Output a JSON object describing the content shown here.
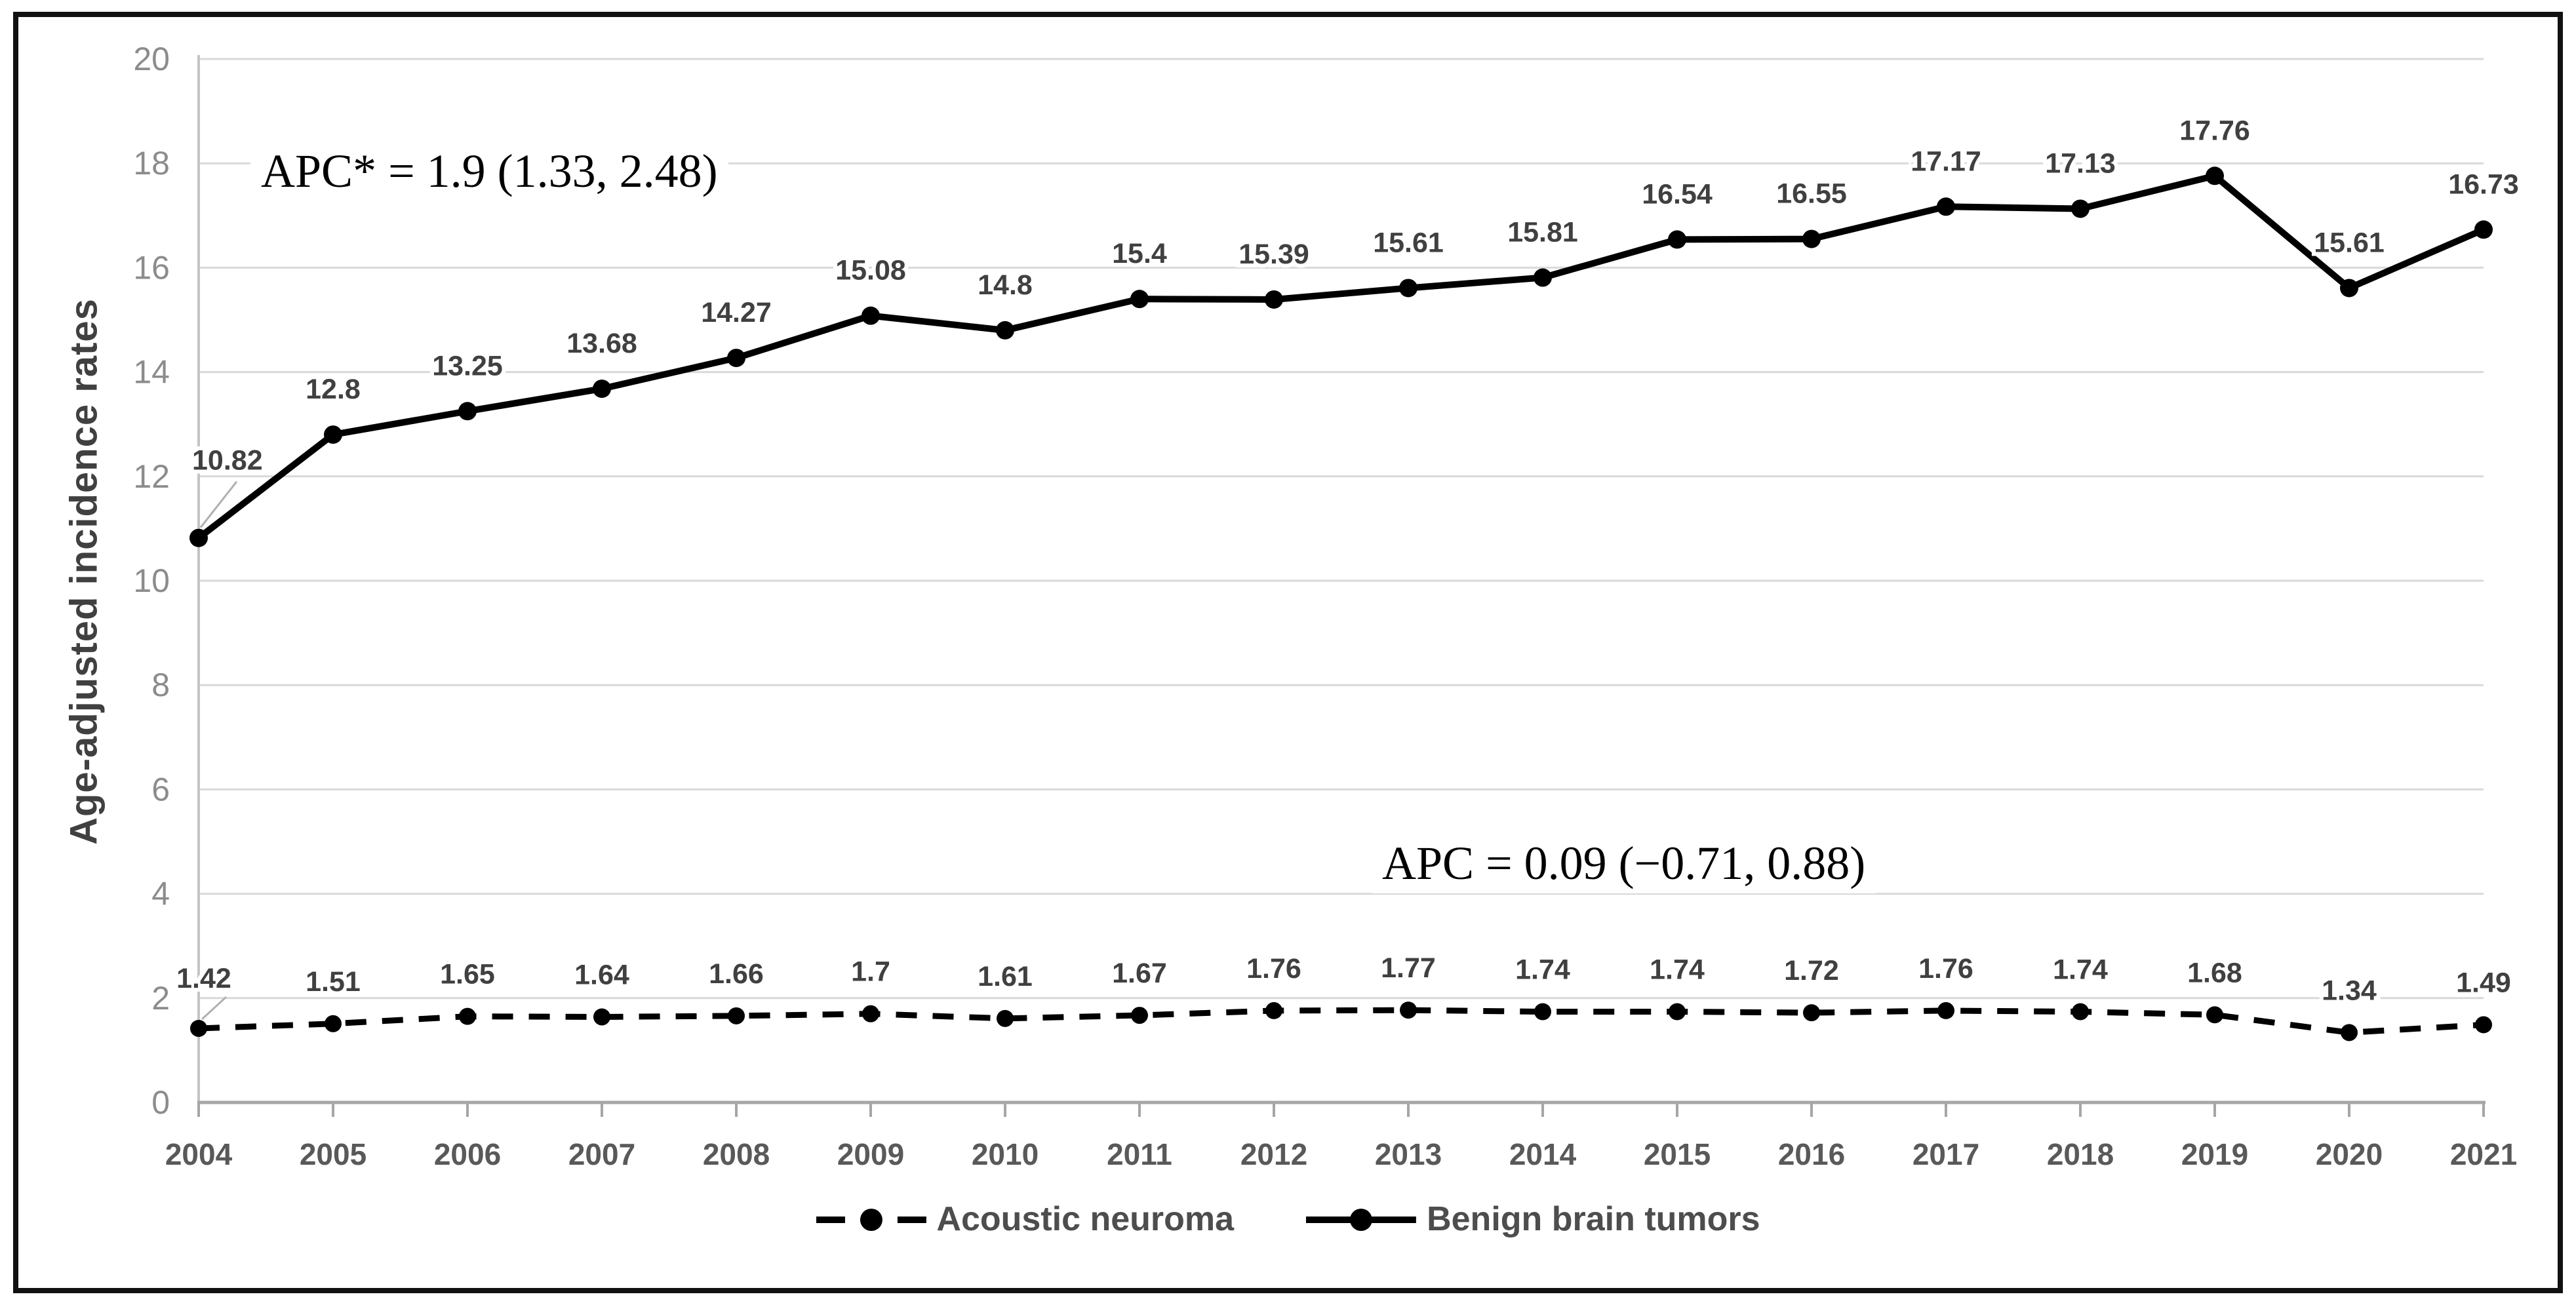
{
  "chart_data": {
    "type": "line",
    "x": [
      2004,
      2005,
      2006,
      2007,
      2008,
      2009,
      2010,
      2011,
      2012,
      2013,
      2014,
      2015,
      2016,
      2017,
      2018,
      2019,
      2020,
      2021
    ],
    "series": [
      {
        "name": "Acoustic neuroma",
        "line_style": "dashed",
        "marker": "circle",
        "color": "#000000",
        "values": [
          1.42,
          1.51,
          1.65,
          1.64,
          1.66,
          1.7,
          1.61,
          1.67,
          1.76,
          1.77,
          1.74,
          1.74,
          1.72,
          1.76,
          1.74,
          1.68,
          1.34,
          1.49
        ]
      },
      {
        "name": "Benign brain tumors",
        "line_style": "solid",
        "marker": "circle",
        "color": "#000000",
        "values": [
          10.82,
          12.8,
          13.25,
          13.68,
          14.27,
          15.08,
          14.8,
          15.4,
          15.39,
          15.61,
          15.81,
          16.54,
          16.55,
          17.17,
          17.13,
          17.76,
          15.61,
          16.73
        ]
      }
    ],
    "title": "",
    "xlabel": "",
    "ylabel": "Age-adjusted incidence rates",
    "ylim": [
      0,
      20
    ],
    "ytick_step": 2,
    "grid": "horizontal",
    "data_labels": true,
    "legend_position": "bottom-center",
    "annotations": [
      {
        "text": "APC* = 1.9 (1.33, 2.48)",
        "series": "Benign brain tumors"
      },
      {
        "text": "APC = 0.09 (−0.71, 0.88)",
        "series": "Acoustic neuroma"
      }
    ]
  },
  "style_colors": {
    "series_line": "#000000",
    "gridline": "#d9d9d9",
    "axis_line": "#a6a6a6",
    "y_axis_line": "#c4c4c4",
    "y_tick_label": "#8c8c8c",
    "x_tick_label": "#595959",
    "data_label": "#404040",
    "leader_line": "#b0b0b0",
    "annotation_text": "#000000",
    "border": "#111111"
  }
}
